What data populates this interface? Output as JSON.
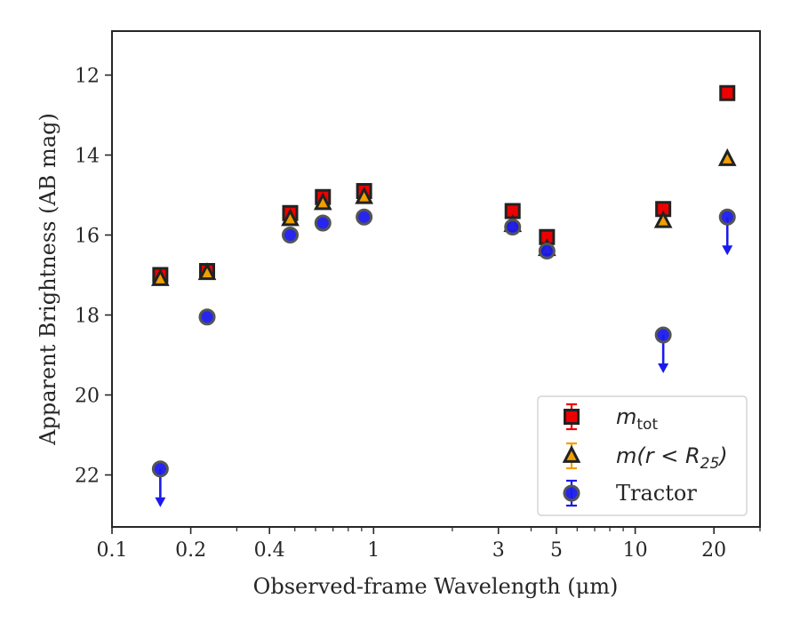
{
  "chart_data": {
    "type": "scatter",
    "xlabel": "Observed-frame Wavelength (μm)",
    "ylabel": "Apparent Brightness (AB mag)",
    "xscale": "log",
    "xlim": [
      0.1,
      30
    ],
    "ylim": [
      23.3,
      10.9
    ],
    "y_inverted": true,
    "x_tick_labels": [
      "0.1",
      "0.2",
      "0.4",
      "1",
      "3",
      "5",
      "10",
      "20"
    ],
    "y_tick_labels": [
      "12",
      "14",
      "16",
      "18",
      "20",
      "22"
    ],
    "grid": false,
    "legend_position": "lower-right",
    "series": [
      {
        "name": "m_tot",
        "legend_label": {
          "main": "m",
          "sub": "tot"
        },
        "marker": "square",
        "color": "#ee0000",
        "points": [
          {
            "x": 0.153,
            "y": 17.0
          },
          {
            "x": 0.231,
            "y": 16.9
          },
          {
            "x": 0.48,
            "y": 15.45
          },
          {
            "x": 0.64,
            "y": 15.05
          },
          {
            "x": 0.92,
            "y": 14.9
          },
          {
            "x": 3.4,
            "y": 15.4
          },
          {
            "x": 4.6,
            "y": 16.05
          },
          {
            "x": 12.8,
            "y": 15.35
          },
          {
            "x": 22.5,
            "y": 12.45
          }
        ]
      },
      {
        "name": "m(r < R_25)",
        "legend_label": {
          "main": "m(r < R",
          "sub": "25",
          "tail": ")"
        },
        "marker": "triangle",
        "color": "#f0a000",
        "points": [
          {
            "x": 0.153,
            "y": 17.1
          },
          {
            "x": 0.231,
            "y": 16.95
          },
          {
            "x": 0.48,
            "y": 15.6
          },
          {
            "x": 0.64,
            "y": 15.2
          },
          {
            "x": 0.92,
            "y": 15.05
          },
          {
            "x": 3.4,
            "y": 15.75
          },
          {
            "x": 4.6,
            "y": 16.35
          },
          {
            "x": 12.8,
            "y": 15.65
          },
          {
            "x": 22.5,
            "y": 14.1
          }
        ]
      },
      {
        "name": "Tractor",
        "legend_label": {
          "main": "Tractor"
        },
        "marker": "circle",
        "color": "#1a1aee",
        "points": [
          {
            "x": 0.153,
            "y": 21.85,
            "upper_limit": true
          },
          {
            "x": 0.231,
            "y": 18.05
          },
          {
            "x": 0.48,
            "y": 16.0
          },
          {
            "x": 0.64,
            "y": 15.7
          },
          {
            "x": 0.92,
            "y": 15.55
          },
          {
            "x": 3.4,
            "y": 15.8
          },
          {
            "x": 4.6,
            "y": 16.4
          },
          {
            "x": 12.8,
            "y": 18.5,
            "upper_limit": true
          },
          {
            "x": 22.5,
            "y": 15.55,
            "upper_limit": true
          }
        ]
      }
    ]
  }
}
